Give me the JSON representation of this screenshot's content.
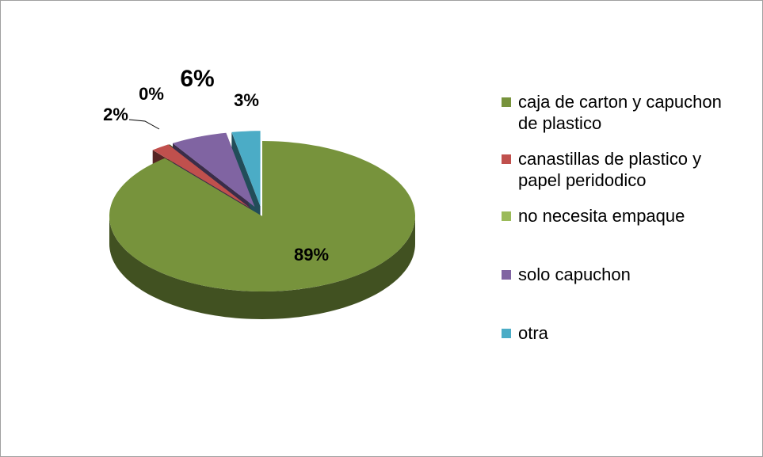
{
  "chart_data": {
    "type": "pie",
    "categories": [
      "caja de carton y capuchon de plastico",
      "canastillas de plastico y papel peridodico",
      "no necesita empaque",
      "solo capuchon",
      "otra"
    ],
    "values": [
      89,
      2,
      0,
      6,
      3
    ],
    "value_labels": [
      "89%",
      "2%",
      "0%",
      "6%",
      "3%"
    ],
    "colors": [
      "#77933c",
      "#c0504d",
      "#9bbb59",
      "#8064a2",
      "#4bacc6"
    ],
    "legend": "right"
  }
}
